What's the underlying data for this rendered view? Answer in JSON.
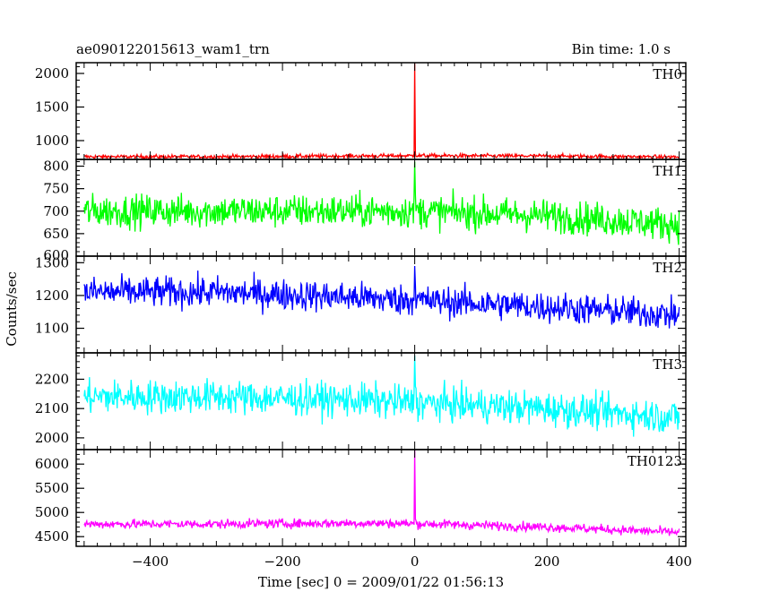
{
  "title": "ae090122015613_wam1_trn",
  "bin_time": "Bin time: 1.0 s",
  "xlabel": "Time [sec] 0 = 2009/01/22 01:56:13",
  "ylabel": "Counts/sec",
  "chart_data": {
    "type": "line",
    "x_range": [
      -512,
      410
    ],
    "x_ticks": [
      -400,
      -200,
      0,
      200,
      400
    ],
    "grid": false,
    "panels": [
      {
        "name": "TH0",
        "color": "#ff0000",
        "ylim": [
          720,
          2160
        ],
        "y_ticks": [
          1000,
          1500,
          2000
        ],
        "baseline": [
          [
            -500,
            760
          ],
          [
            -300,
            760
          ],
          [
            -100,
            770
          ],
          [
            0,
            775
          ],
          [
            200,
            770
          ],
          [
            400,
            755
          ]
        ],
        "noise": 28,
        "spike": 2200,
        "spike_x": 0
      },
      {
        "name": "TH1",
        "color": "#00ff00",
        "ylim": [
          600,
          815
        ],
        "y_ticks": [
          600,
          650,
          700,
          750,
          800
        ],
        "baseline": [
          [
            -500,
            700
          ],
          [
            -300,
            700
          ],
          [
            -100,
            700
          ],
          [
            0,
            700
          ],
          [
            200,
            690
          ],
          [
            400,
            670
          ]
        ],
        "noise": 35,
        "spike": 810,
        "spike_x": 0
      },
      {
        "name": "TH2",
        "color": "#0000ff",
        "ylim": [
          1025,
          1320
        ],
        "y_ticks": [
          1100,
          1200,
          1300
        ],
        "baseline": [
          [
            -500,
            1210
          ],
          [
            -300,
            1210
          ],
          [
            -100,
            1195
          ],
          [
            0,
            1185
          ],
          [
            200,
            1165
          ],
          [
            400,
            1140
          ]
        ],
        "noise": 45,
        "spike": 1290,
        "spike_x": 0
      },
      {
        "name": "TH3",
        "color": "#00ffff",
        "ylim": [
          1960,
          2290
        ],
        "y_ticks": [
          2000,
          2100,
          2200
        ],
        "baseline": [
          [
            -500,
            2140
          ],
          [
            -300,
            2140
          ],
          [
            -100,
            2130
          ],
          [
            0,
            2120
          ],
          [
            200,
            2100
          ],
          [
            400,
            2070
          ]
        ],
        "noise": 55,
        "spike": 2280,
        "spike_x": 0
      },
      {
        "name": "TH0123",
        "color": "#ff00ff",
        "ylim": [
          4300,
          6300
        ],
        "y_ticks": [
          4500,
          5000,
          5500,
          6000
        ],
        "baseline": [
          [
            -500,
            4760
          ],
          [
            -300,
            4760
          ],
          [
            -100,
            4780
          ],
          [
            0,
            4770
          ],
          [
            200,
            4700
          ],
          [
            400,
            4590
          ]
        ],
        "noise": 90,
        "spike": 6300,
        "spike_x": 0
      }
    ]
  }
}
